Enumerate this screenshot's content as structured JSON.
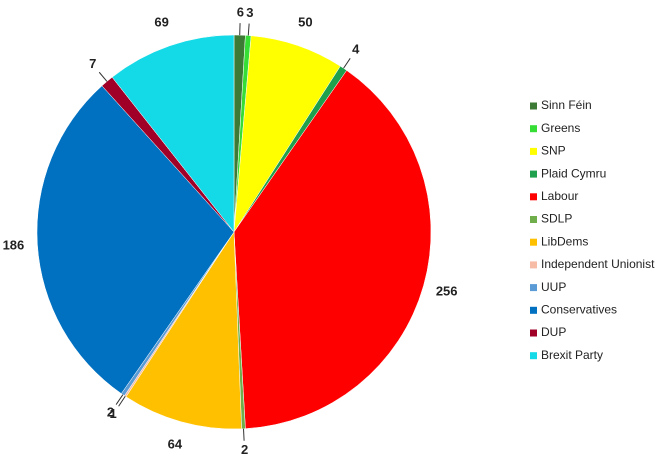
{
  "chart_data": {
    "type": "pie",
    "categories": [
      "Sinn Féin",
      "Greens",
      "SNP",
      "Plaid Cymru",
      "Labour",
      "SDLP",
      "LibDems",
      "Independent Unionist",
      "UUP",
      "Conservatives",
      "DUP",
      "Brexit Party"
    ],
    "values": [
      6,
      3,
      50,
      4,
      256,
      2,
      64,
      1,
      2,
      186,
      7,
      69
    ],
    "colors": [
      "#3c7a35",
      "#35dd35",
      "#ffff00",
      "#1fa04c",
      "#ff0000",
      "#6fae4a",
      "#ffc000",
      "#f6bca6",
      "#5b9bd5",
      "#0070c0",
      "#a00028",
      "#14d9e6"
    ]
  }
}
